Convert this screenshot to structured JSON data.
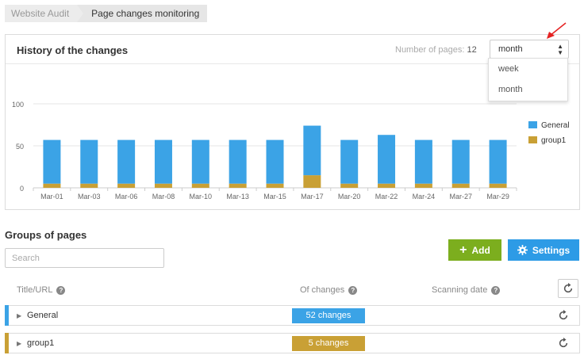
{
  "breadcrumb": {
    "items": [
      "Website Audit",
      "Page changes monitoring"
    ]
  },
  "history": {
    "title": "History of the changes",
    "pages_label": "Number of pages:",
    "pages_value": "12",
    "period_selected": "month",
    "period_options": [
      "week",
      "month"
    ]
  },
  "chart_data": {
    "type": "bar",
    "stacked": true,
    "categories": [
      "Mar-01",
      "Mar-03",
      "Mar-06",
      "Mar-08",
      "Mar-10",
      "Mar-13",
      "Mar-15",
      "Mar-17",
      "Mar-20",
      "Mar-22",
      "Mar-24",
      "Mar-27",
      "Mar-29"
    ],
    "series": [
      {
        "name": "General",
        "color": "#3ba3e6",
        "values": [
          52,
          52,
          52,
          52,
          52,
          52,
          52,
          59,
          52,
          58,
          52,
          52,
          52
        ]
      },
      {
        "name": "group1",
        "color": "#c9a035",
        "values": [
          5,
          5,
          5,
          5,
          5,
          5,
          5,
          15,
          5,
          5,
          5,
          5,
          5
        ]
      }
    ],
    "yticks": [
      "0",
      "50",
      "100"
    ],
    "ylim": [
      0,
      100
    ],
    "grid": true,
    "legend": "right"
  },
  "groups": {
    "title": "Groups of pages",
    "search_placeholder": "Search",
    "add_label": "Add",
    "settings_label": "Settings",
    "col_title": "Title/URL",
    "col_changes": "Of changes",
    "col_date": "Scanning date",
    "rows": [
      {
        "name": "General",
        "changes": "52 changes",
        "color": "#3ba3e6"
      },
      {
        "name": "group1",
        "changes": "5 changes",
        "color": "#c9a035"
      }
    ]
  }
}
